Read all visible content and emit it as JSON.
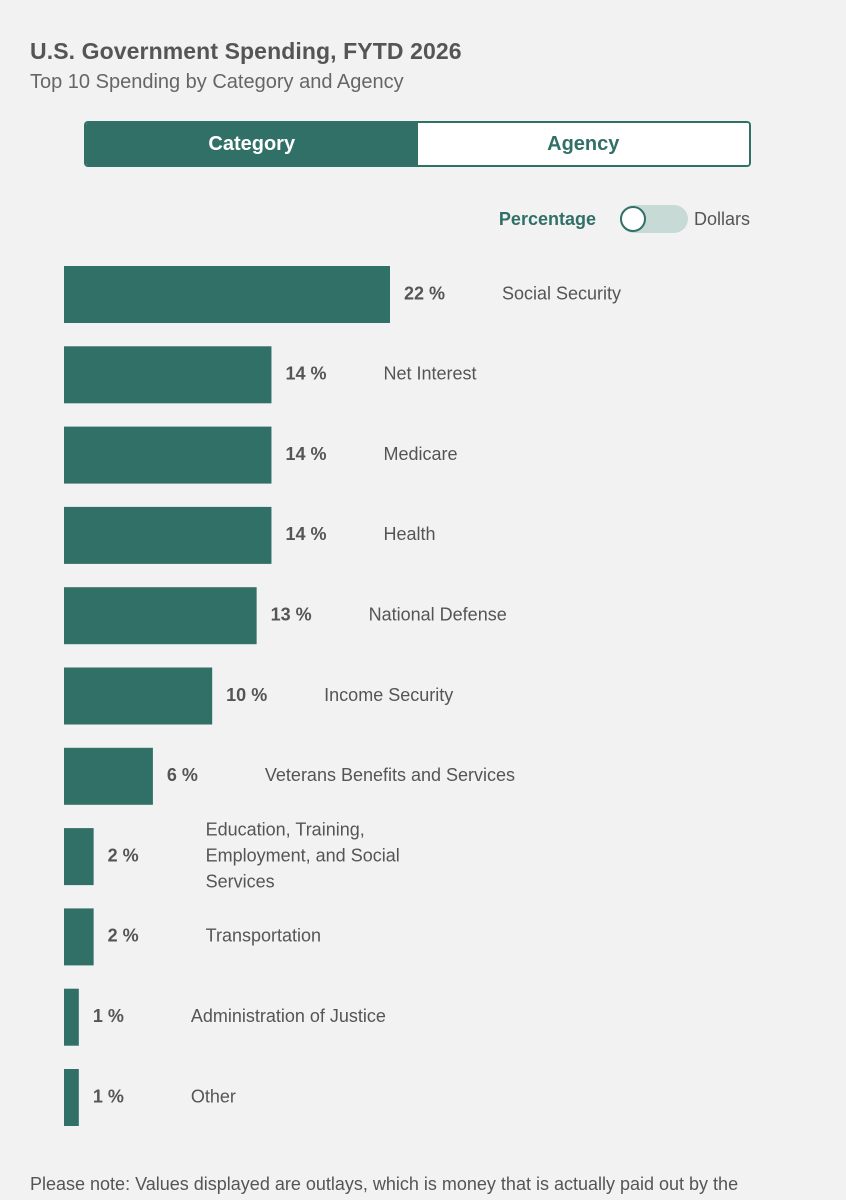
{
  "header": {
    "title": "U.S. Government Spending, FYTD 2026",
    "subtitle": "Top 10 Spending by Category and Agency"
  },
  "tabs": [
    {
      "label": "Category",
      "active": true
    },
    {
      "label": "Agency",
      "active": false
    }
  ],
  "toggle": {
    "left_label": "Percentage",
    "right_label": "Dollars",
    "selected": "Percentage"
  },
  "chart_data": {
    "type": "bar",
    "orientation": "horizontal",
    "unit": "%",
    "bar_color": "#317067",
    "categories": [
      "Social Security",
      "Net Interest",
      "Medicare",
      "Health",
      "National Defense",
      "Income Security",
      "Veterans Benefits and Services",
      "Education, Training, Employment, and Social Services",
      "Transportation",
      "Administration of Justice",
      "Other"
    ],
    "values": [
      22,
      14,
      14,
      14,
      13,
      10,
      6,
      2,
      2,
      1,
      1
    ],
    "value_labels": [
      "22 %",
      "14 %",
      "14 %",
      "14 %",
      "13 %",
      "10 %",
      "6 %",
      "2 %",
      "2 %",
      "1 %",
      "1 %"
    ],
    "category_lines": [
      [
        "Social Security"
      ],
      [
        "Net Interest"
      ],
      [
        "Medicare"
      ],
      [
        "Health"
      ],
      [
        "National Defense"
      ],
      [
        "Income Security"
      ],
      [
        "Veterans Benefits and Services"
      ],
      [
        "Education, Training,",
        "Employment, and Social",
        "Services"
      ],
      [
        "Transportation"
      ],
      [
        "Administration of Justice"
      ],
      [
        "Other"
      ]
    ]
  },
  "footer": {
    "note": "Please note: Values displayed are outlays, which is money that is actually paid out by the"
  },
  "colors": {
    "accent": "#317067",
    "background": "#f2f2f2",
    "toggle_track": "#c8dad6"
  }
}
